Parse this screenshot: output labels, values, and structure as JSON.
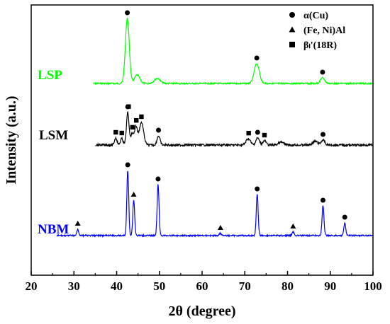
{
  "chart_data": {
    "type": "line",
    "xlabel": "2θ (degree)",
    "ylabel": "Intensity (a.u.)",
    "xlim": [
      20,
      100
    ],
    "xticks": [
      20,
      30,
      40,
      50,
      60,
      70,
      80,
      90,
      100
    ],
    "y_tick_labels": false,
    "grid": false,
    "legend_position": "top-right",
    "legend": [
      {
        "marker": "circle",
        "label": "α(Cu)"
      },
      {
        "marker": "triangle",
        "label": "(Fe, Ni)Al"
      },
      {
        "marker": "square",
        "label": "βₗ'(18R)"
      }
    ],
    "series": [
      {
        "name": "LSP",
        "color": "#00ff00",
        "baseline": 118,
        "peaks": [
          {
            "x": 42.5,
            "h": 92,
            "w": 0.45
          },
          {
            "x": 44.8,
            "h": 12,
            "w": 0.6
          },
          {
            "x": 49.5,
            "h": 7,
            "w": 0.7
          },
          {
            "x": 72.8,
            "h": 28,
            "w": 0.6
          },
          {
            "x": 88.2,
            "h": 8,
            "w": 0.5
          }
        ],
        "phase_markers": [
          {
            "x": 42.5,
            "phase": "circle"
          },
          {
            "x": 72.8,
            "phase": "circle"
          },
          {
            "x": 88.2,
            "phase": "circle"
          }
        ]
      },
      {
        "name": "LSM",
        "color": "#000000",
        "baseline": 205,
        "peaks": [
          {
            "x": 39.8,
            "h": 10,
            "w": 0.3
          },
          {
            "x": 41.2,
            "h": 9,
            "w": 0.3
          },
          {
            "x": 42.6,
            "h": 46,
            "w": 0.3
          },
          {
            "x": 43.6,
            "h": 16,
            "w": 0.3
          },
          {
            "x": 44.5,
            "h": 26,
            "w": 0.35
          },
          {
            "x": 45.8,
            "h": 32,
            "w": 0.5
          },
          {
            "x": 49.8,
            "h": 13,
            "w": 0.35
          },
          {
            "x": 70.8,
            "h": 9,
            "w": 0.5
          },
          {
            "x": 73.0,
            "h": 10,
            "w": 0.4
          },
          {
            "x": 74.6,
            "h": 6,
            "w": 0.4
          },
          {
            "x": 78.5,
            "h": 4,
            "w": 0.6
          },
          {
            "x": 86.5,
            "h": 5,
            "w": 0.6
          },
          {
            "x": 88.3,
            "h": 7,
            "w": 0.4
          }
        ],
        "phase_markers": [
          {
            "x": 39.8,
            "phase": "square"
          },
          {
            "x": 41.2,
            "phase": "square"
          },
          {
            "x": 42.6,
            "phase": "circle"
          },
          {
            "x": 42.8,
            "phase": "square"
          },
          {
            "x": 43.7,
            "phase": "square"
          },
          {
            "x": 44.6,
            "phase": "square"
          },
          {
            "x": 45.8,
            "phase": "square"
          },
          {
            "x": 49.8,
            "phase": "circle"
          },
          {
            "x": 70.9,
            "phase": "square"
          },
          {
            "x": 73.0,
            "phase": "circle"
          },
          {
            "x": 74.6,
            "phase": "square"
          },
          {
            "x": 88.3,
            "phase": "circle"
          }
        ]
      },
      {
        "name": "NBM",
        "color": "#0000ff",
        "baseline": 333,
        "peaks": [
          {
            "x": 30.9,
            "h": 9,
            "w": 0.22
          },
          {
            "x": 42.6,
            "h": 92,
            "w": 0.22
          },
          {
            "x": 44.0,
            "h": 50,
            "w": 0.22
          },
          {
            "x": 49.7,
            "h": 72,
            "w": 0.22
          },
          {
            "x": 64.3,
            "h": 3,
            "w": 0.3
          },
          {
            "x": 72.9,
            "h": 58,
            "w": 0.22
          },
          {
            "x": 81.3,
            "h": 5,
            "w": 0.25
          },
          {
            "x": 88.3,
            "h": 42,
            "w": 0.22
          },
          {
            "x": 93.4,
            "h": 18,
            "w": 0.22
          }
        ],
        "phase_markers": [
          {
            "x": 30.9,
            "phase": "triangle"
          },
          {
            "x": 42.6,
            "phase": "circle"
          },
          {
            "x": 44.0,
            "phase": "triangle"
          },
          {
            "x": 49.7,
            "phase": "circle"
          },
          {
            "x": 64.3,
            "phase": "triangle"
          },
          {
            "x": 72.9,
            "phase": "circle"
          },
          {
            "x": 81.3,
            "phase": "triangle"
          },
          {
            "x": 88.3,
            "phase": "circle"
          },
          {
            "x": 93.4,
            "phase": "circle"
          }
        ]
      }
    ]
  }
}
